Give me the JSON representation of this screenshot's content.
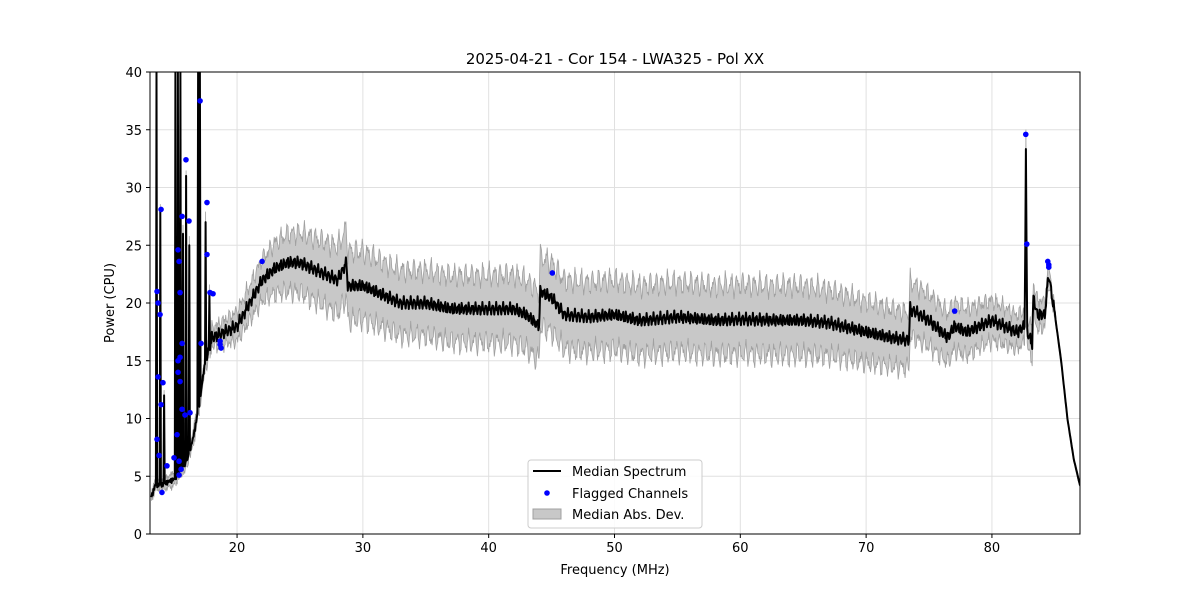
{
  "chart_data": {
    "type": "line",
    "title": "2025-04-21 - Cor 154 - LWA325 - Pol XX",
    "xlabel": "Frequency (MHz)",
    "ylabel": "Power (CPU)",
    "xlim": [
      13.08,
      87.0
    ],
    "ylim": [
      0,
      40
    ],
    "xticks": [
      20,
      30,
      40,
      50,
      60,
      70,
      80
    ],
    "yticks": [
      0,
      5,
      10,
      15,
      20,
      25,
      30,
      35,
      40
    ],
    "grid": true,
    "legend_position": "bottom-center",
    "legend": [
      "Median Spectrum",
      "Flagged Channels",
      "Median Abs. Dev."
    ],
    "colors": {
      "median": "#000000",
      "flagged": "#0000ff",
      "mad_fill": "#c8c8c8",
      "mad_edge": "#a0a0a0"
    },
    "median_spectrum": [
      [
        13.2,
        3.0
      ],
      [
        13.5,
        4.0
      ],
      [
        14.0,
        4.0
      ],
      [
        15.0,
        4.5
      ],
      [
        16.0,
        6.0
      ],
      [
        16.5,
        8.0
      ],
      [
        17.0,
        11.0
      ],
      [
        17.5,
        15.0
      ],
      [
        18.0,
        17.0
      ],
      [
        19.0,
        17.5
      ],
      [
        20.0,
        18.0
      ],
      [
        21.0,
        20.0
      ],
      [
        22.0,
        22.0
      ],
      [
        23.0,
        23.0
      ],
      [
        24.0,
        23.5
      ],
      [
        25.0,
        23.5
      ],
      [
        26.0,
        23.0
      ],
      [
        27.0,
        22.5
      ],
      [
        28.0,
        22.0
      ],
      [
        28.7,
        23.5
      ],
      [
        28.8,
        21.5
      ],
      [
        30.0,
        21.5
      ],
      [
        31.0,
        21.0
      ],
      [
        32.0,
        20.5
      ],
      [
        33.0,
        20.0
      ],
      [
        35.0,
        20.0
      ],
      [
        37.0,
        19.5
      ],
      [
        40.0,
        19.5
      ],
      [
        42.0,
        19.5
      ],
      [
        43.0,
        19.0
      ],
      [
        44.0,
        18.0
      ],
      [
        44.1,
        21.0
      ],
      [
        45.0,
        20.5
      ],
      [
        46.0,
        19.0
      ],
      [
        48.0,
        18.8
      ],
      [
        50.0,
        19.0
      ],
      [
        52.0,
        18.5
      ],
      [
        55.0,
        18.8
      ],
      [
        58.0,
        18.5
      ],
      [
        60.0,
        18.6
      ],
      [
        63.0,
        18.5
      ],
      [
        65.0,
        18.5
      ],
      [
        67.0,
        18.3
      ],
      [
        70.0,
        17.5
      ],
      [
        72.0,
        17.0
      ],
      [
        73.4,
        16.8
      ],
      [
        73.5,
        19.5
      ],
      [
        75.0,
        18.5
      ],
      [
        76.5,
        17.0
      ],
      [
        77.0,
        18.0
      ],
      [
        78.0,
        17.5
      ],
      [
        80.0,
        18.5
      ],
      [
        82.0,
        17.5
      ],
      [
        82.6,
        18.0
      ],
      [
        82.7,
        33.0
      ],
      [
        82.8,
        17.5
      ],
      [
        83.2,
        16.5
      ],
      [
        83.3,
        20.5
      ],
      [
        83.6,
        19.0
      ],
      [
        84.2,
        19.0
      ],
      [
        84.5,
        22.5
      ],
      [
        85.0,
        19.0
      ],
      [
        85.5,
        15.0
      ],
      [
        86.0,
        10.0
      ],
      [
        86.5,
        6.5
      ],
      [
        87.0,
        4.2
      ]
    ],
    "spikes": [
      [
        13.6,
        40
      ],
      [
        13.9,
        28
      ],
      [
        14.2,
        12
      ],
      [
        15.1,
        40
      ],
      [
        15.3,
        40
      ],
      [
        15.5,
        40
      ],
      [
        15.7,
        26
      ],
      [
        15.95,
        31
      ],
      [
        16.2,
        25
      ],
      [
        16.9,
        40
      ],
      [
        17.05,
        40
      ],
      [
        17.5,
        27
      ],
      [
        17.8,
        21
      ]
    ],
    "mad_halfwidth": [
      [
        13.2,
        0.4
      ],
      [
        18,
        0.8
      ],
      [
        21,
        1.5
      ],
      [
        24,
        2.5
      ],
      [
        29,
        3.0
      ],
      [
        33,
        2.8
      ],
      [
        44,
        3.0
      ],
      [
        50,
        3.0
      ],
      [
        65,
        3.0
      ],
      [
        72,
        2.5
      ],
      [
        78,
        2.0
      ],
      [
        84,
        1.2
      ],
      [
        85,
        0.4
      ],
      [
        87,
        0.2
      ]
    ],
    "flagged_channels": [
      [
        13.64,
        21.0
      ],
      [
        13.72,
        20.0
      ],
      [
        13.88,
        19.0
      ],
      [
        13.96,
        28.1
      ],
      [
        13.72,
        13.6
      ],
      [
        14.11,
        13.1
      ],
      [
        13.96,
        11.2
      ],
      [
        13.64,
        8.2
      ],
      [
        13.8,
        6.8
      ],
      [
        14.43,
        5.9
      ],
      [
        14.03,
        3.6
      ],
      [
        15.31,
        24.6
      ],
      [
        15.39,
        23.6
      ],
      [
        15.47,
        20.9
      ],
      [
        15.63,
        27.5
      ],
      [
        15.94,
        32.4
      ],
      [
        16.18,
        27.1
      ],
      [
        15.63,
        16.5
      ],
      [
        15.47,
        15.3
      ],
      [
        15.31,
        15.0
      ],
      [
        15.47,
        13.2
      ],
      [
        15.31,
        14.0
      ],
      [
        15.63,
        10.8
      ],
      [
        15.86,
        10.3
      ],
      [
        16.26,
        10.5
      ],
      [
        15.23,
        8.6
      ],
      [
        14.99,
        6.6
      ],
      [
        15.39,
        6.3
      ],
      [
        15.55,
        5.6
      ],
      [
        15.39,
        5.1
      ],
      [
        17.06,
        37.5
      ],
      [
        17.61,
        28.7
      ],
      [
        17.61,
        24.2
      ],
      [
        17.85,
        20.9
      ],
      [
        18.09,
        20.8
      ],
      [
        17.14,
        16.5
      ],
      [
        18.65,
        16.4
      ],
      [
        18.73,
        16.1
      ],
      [
        18.65,
        16.7
      ],
      [
        21.99,
        23.6
      ],
      [
        45.06,
        22.6
      ],
      [
        77.04,
        19.3
      ],
      [
        82.69,
        34.6
      ],
      [
        82.77,
        25.1
      ],
      [
        84.44,
        23.6
      ],
      [
        84.52,
        23.3
      ],
      [
        84.52,
        23.1
      ]
    ]
  }
}
